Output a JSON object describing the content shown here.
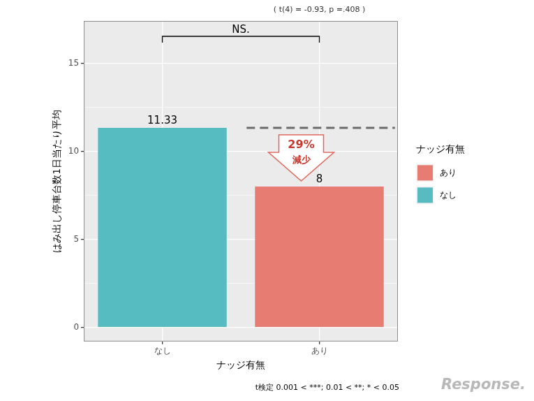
{
  "chart_data": {
    "type": "bar",
    "x_label": "ナッジ有無",
    "y_label": "はみ出し停車台数1日当たり平均",
    "categories": [
      "なし",
      "あり"
    ],
    "values": [
      11.33,
      8
    ],
    "colors": [
      "#56bcc2",
      "#e77c73"
    ],
    "ylim": [
      -0.8,
      17.4
    ],
    "yticks": [
      0,
      5,
      10,
      15
    ],
    "grid": true,
    "data_labels": true,
    "legend": "right",
    "legend_title": "ナッジ有無",
    "annotations": {
      "test_result": "( t(4) = -0.93, p =.408 )",
      "significance": "NS.",
      "change": "29%",
      "change_word": "減少",
      "note": "t検定 0.001 < ***; 0.01 < **; * < 0.05",
      "watermark": "Response."
    }
  }
}
